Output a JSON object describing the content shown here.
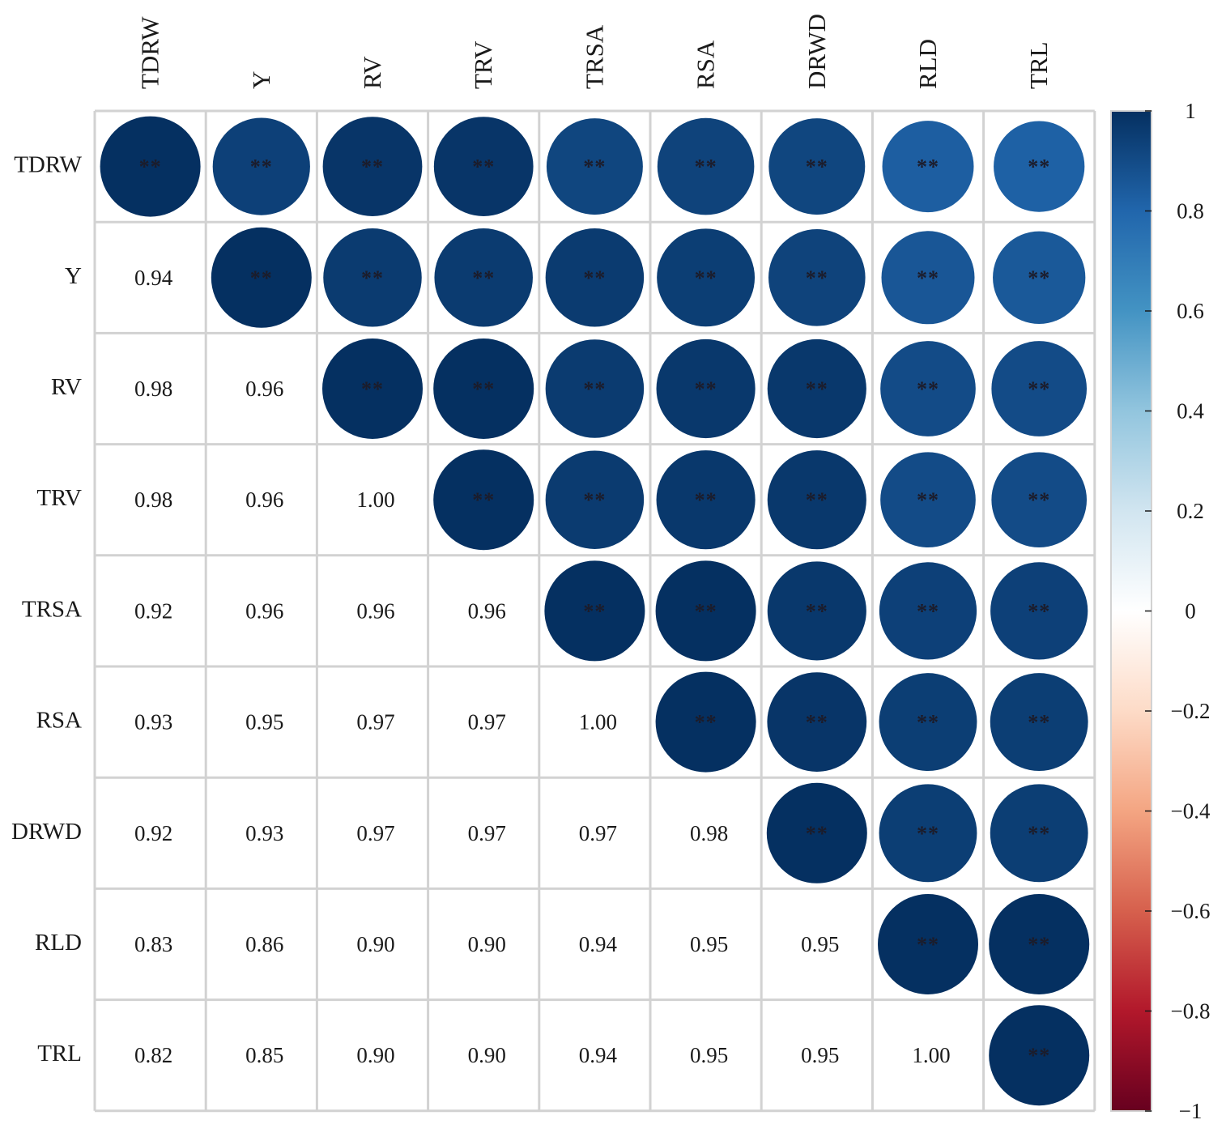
{
  "chart_data": {
    "type": "heatmap",
    "subtype": "correlation-matrix",
    "variables": [
      "TDRW",
      "Y",
      "RV",
      "TRV",
      "TRSA",
      "RSA",
      "DRWD",
      "RLD",
      "TRL"
    ],
    "matrix": [
      [
        1.0,
        0.94,
        0.98,
        0.98,
        0.92,
        0.93,
        0.92,
        0.83,
        0.82
      ],
      [
        0.94,
        1.0,
        0.96,
        0.96,
        0.96,
        0.95,
        0.93,
        0.86,
        0.85
      ],
      [
        0.98,
        0.96,
        1.0,
        1.0,
        0.96,
        0.97,
        0.97,
        0.9,
        0.9
      ],
      [
        0.98,
        0.96,
        1.0,
        1.0,
        0.96,
        0.97,
        0.97,
        0.9,
        0.9
      ],
      [
        0.92,
        0.96,
        0.96,
        0.96,
        1.0,
        1.0,
        0.97,
        0.94,
        0.94
      ],
      [
        0.93,
        0.95,
        0.97,
        0.97,
        1.0,
        1.0,
        0.98,
        0.95,
        0.95
      ],
      [
        0.92,
        0.93,
        0.97,
        0.97,
        0.97,
        0.98,
        1.0,
        0.95,
        0.95
      ],
      [
        0.83,
        0.86,
        0.9,
        0.9,
        0.94,
        0.95,
        0.95,
        1.0,
        1.0
      ],
      [
        0.82,
        0.85,
        0.9,
        0.9,
        0.94,
        0.95,
        0.95,
        1.0,
        1.0
      ]
    ],
    "lower_triangle_text": [
      [],
      [
        "0.94"
      ],
      [
        "0.98",
        "0.96"
      ],
      [
        "0.98",
        "0.96",
        "1.00"
      ],
      [
        "0.92",
        "0.96",
        "0.96",
        "0.96"
      ],
      [
        "0.93",
        "0.95",
        "0.97",
        "0.97",
        "1.00"
      ],
      [
        "0.92",
        "0.93",
        "0.97",
        "0.97",
        "0.97",
        "0.98"
      ],
      [
        "0.83",
        "0.86",
        "0.90",
        "0.90",
        "0.94",
        "0.95",
        "0.95"
      ],
      [
        "0.82",
        "0.85",
        "0.90",
        "0.90",
        "0.94",
        "0.95",
        "0.95",
        "1.00"
      ]
    ],
    "significance_marker": "**",
    "upper_triangle_style": "circle",
    "lower_triangle_style": "number",
    "colorbar": {
      "range": [
        -1,
        1
      ],
      "ticks": [
        1,
        0.8,
        0.6,
        0.4,
        0.2,
        0,
        -0.2,
        -0.4,
        -0.6,
        -0.8,
        -1
      ],
      "tick_labels": [
        "1",
        "0.8",
        "0.6",
        "0.4",
        "0.2",
        "0",
        "−0.2",
        "−0.4",
        "−0.6",
        "−0.8",
        "−1"
      ],
      "colormap": [
        "#67001f",
        "#b2182b",
        "#d6604d",
        "#f4a582",
        "#fddbc7",
        "#ffffff",
        "#d1e5f0",
        "#92c5de",
        "#4393c3",
        "#2166ac",
        "#053061"
      ]
    }
  }
}
